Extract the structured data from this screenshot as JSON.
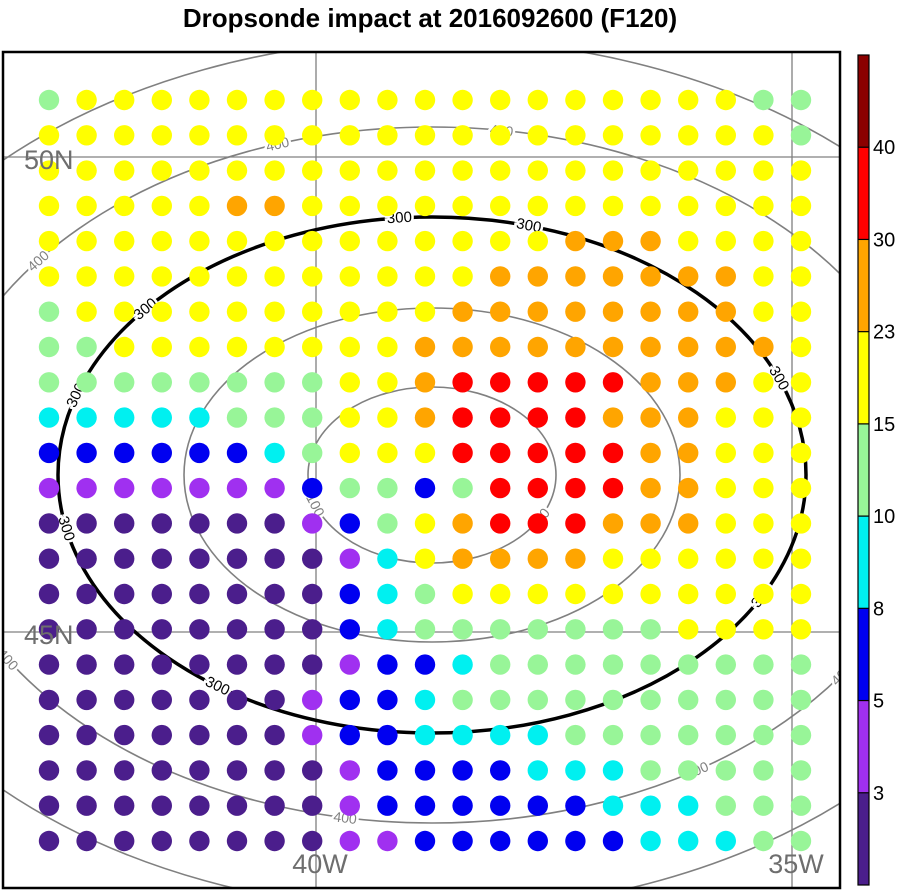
{
  "chart_data": {
    "type": "scatter",
    "title": "Dropsonde impact at 2016092600 (F120)",
    "lat_labels": [
      {
        "lat": 50,
        "text": "50N"
      },
      {
        "lat": 45,
        "text": "45N"
      }
    ],
    "lon_labels": [
      {
        "lon": -40,
        "text": "40W"
      },
      {
        "lon": -35,
        "text": "35W"
      }
    ],
    "colorbar": {
      "levels": [
        "3",
        "5",
        "8",
        "10",
        "15",
        "23",
        "30",
        "40"
      ],
      "colors": [
        "#4b1e8c",
        "#a030f0",
        "#0000f0",
        "#00f0f0",
        "#98f598",
        "#ffff00",
        "#ffa500",
        "#ff0000",
        "#8b0000"
      ]
    },
    "contours": [
      {
        "level": "100",
        "color": "#808080",
        "labels": 2
      },
      {
        "level": "200",
        "color": "#808080",
        "labels": 0
      },
      {
        "level": "300",
        "color": "#000000",
        "labels": 8
      },
      {
        "level": "400",
        "color": "#808080",
        "labels": 7
      },
      {
        "level": "500",
        "color": "#808080",
        "labels": 0
      }
    ],
    "grid": {
      "columns": 21,
      "rows": [
        "GYYYYYYYYYYYYYYYYYYGG",
        "YYYYYYYYYYYYYYYYYYYYG",
        "YYYYYYYYYYYYYYYYYYYYY",
        "YYYYYOOYYYYYYYYYYYYYY",
        "YYYYYYYYYYYYYYOOOYYYY",
        "YYYYYYYYYYYYOOOOOOOYY",
        "GYYYYYYYYYYOOOOOOOOYY",
        "GGYYYYYYYYOOOOOOOOOOY",
        "GGGGGGGGYYORRRRROOOYY",
        "CCCCCGGGYYORRRROOOYYY",
        "BBBBBBCGYYYRRRRROOYYY",
        "PPPPPPPBGGBGRRRROOYYY",
        "VVVVVVVPBGYORRROOOYYY",
        "VVVVVVVVPCYOOOOYYYYYY",
        "VVVVVVVVBCGYYYYYYYYYY",
        "VVVVVVVVBCGGGGGGGYYYY",
        "VVVVVVVVPBBCGGGGGGGGG",
        "VVVVVVVPBBCGGGGGGGGGG",
        "VVVVVVVPBBCCCCGGGGGGG",
        "VVVVVVVVPBBBBCCCGGGGG",
        "VVVVVVVVPBBBBBBCCCGGG",
        "VVVVVVVVPPBBBBBBCCCGG"
      ],
      "legend": {
        "V": 0,
        "P": 1,
        "B": 2,
        "C": 3,
        "G": 4,
        "Y": 5,
        "O": 6,
        "R": 7,
        "D": 8
      }
    }
  }
}
